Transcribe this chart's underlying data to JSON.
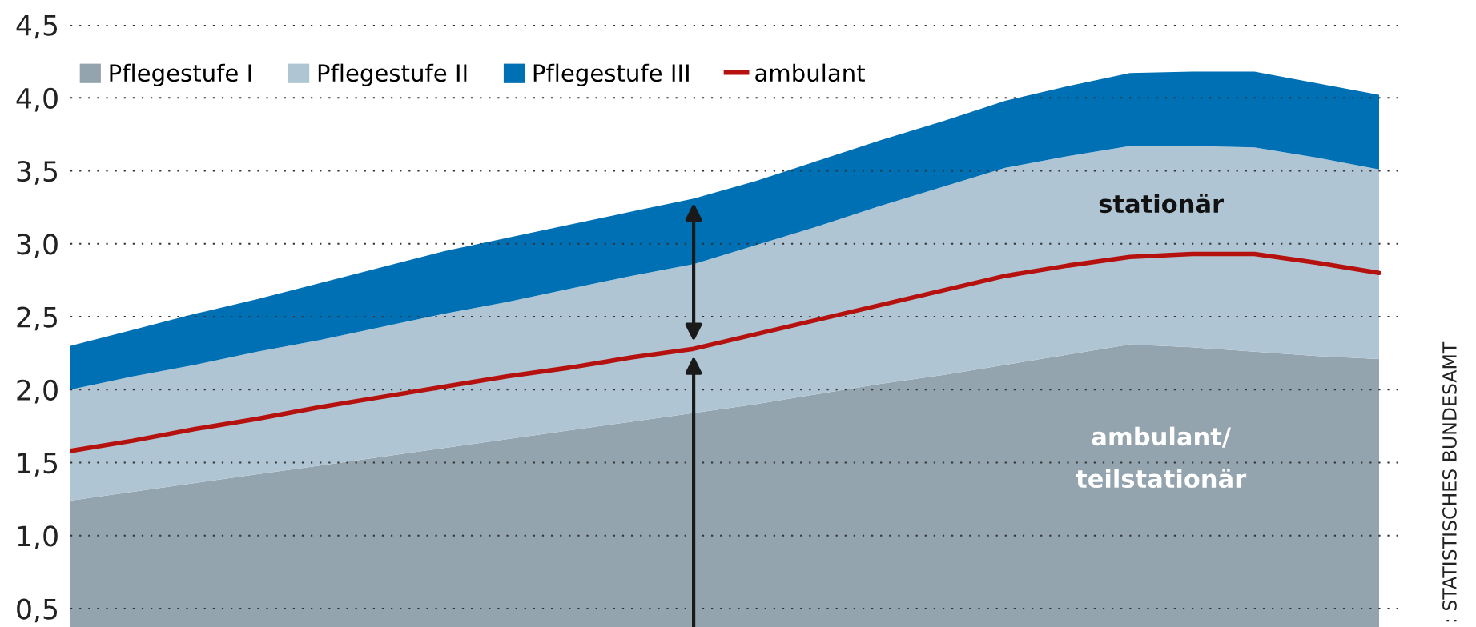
{
  "chart_data": {
    "type": "area",
    "stacked": true,
    "categories": [
      null,
      null,
      null,
      null,
      null,
      null,
      null,
      null,
      null,
      null,
      null,
      null,
      null,
      null,
      null,
      null,
      null,
      null,
      null,
      null,
      null,
      null
    ],
    "series": [
      {
        "name": "Pflegestufe I",
        "color": "#94a4ae",
        "values": [
          1.24,
          1.3,
          1.36,
          1.42,
          1.48,
          1.54,
          1.6,
          1.66,
          1.72,
          1.78,
          1.84,
          1.9,
          1.97,
          2.04,
          2.1,
          2.17,
          2.24,
          2.31,
          2.29,
          2.26,
          2.23,
          2.21
        ]
      },
      {
        "name": "Pflegestufe II",
        "color": "#b0c5d3",
        "values": [
          0.76,
          0.79,
          0.81,
          0.84,
          0.86,
          0.89,
          0.92,
          0.94,
          0.97,
          1.0,
          1.02,
          1.09,
          1.15,
          1.22,
          1.29,
          1.35,
          1.36,
          1.36,
          1.38,
          1.4,
          1.36,
          1.3
        ]
      },
      {
        "name": "Pflegestufe III",
        "color": "#0070b5",
        "values": [
          0.3,
          0.32,
          0.35,
          0.36,
          0.39,
          0.41,
          0.43,
          0.44,
          0.44,
          0.44,
          0.45,
          0.44,
          0.45,
          0.45,
          0.45,
          0.46,
          0.48,
          0.5,
          0.51,
          0.52,
          0.51,
          0.51
        ]
      },
      {
        "name": "ambulant",
        "type": "line",
        "color": "#b5120f",
        "values": [
          1.58,
          1.65,
          1.73,
          1.8,
          1.88,
          1.95,
          2.02,
          2.09,
          2.15,
          2.22,
          2.28,
          2.38,
          2.48,
          2.58,
          2.68,
          2.78,
          2.85,
          2.91,
          2.93,
          2.93,
          2.87,
          2.8
        ]
      }
    ],
    "ylim": [
      0,
      4.5
    ],
    "yticks": [
      {
        "value": 0.5,
        "label": "0,5"
      },
      {
        "value": 1.0,
        "label": "1,0"
      },
      {
        "value": 1.5,
        "label": "1,5"
      },
      {
        "value": 2.0,
        "label": "2,0"
      },
      {
        "value": 2.5,
        "label": "2,5"
      },
      {
        "value": 3.0,
        "label": "3,0"
      },
      {
        "value": 3.5,
        "label": "3,5"
      },
      {
        "value": 4.0,
        "label": "4,0"
      },
      {
        "value": 4.5,
        "label": "4,5"
      }
    ],
    "tick_labels": "y",
    "grid": "y",
    "line_style": "solid",
    "legend": "top left",
    "annotations": [
      "stationär",
      "ambulant/\nteilstationär",
      ": STATISTISCHES BUNDESAMT"
    ]
  }
}
